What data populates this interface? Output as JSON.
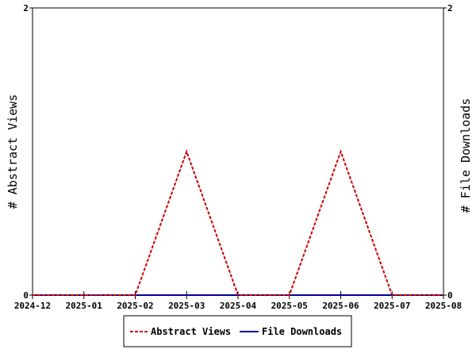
{
  "chart_data": {
    "type": "line",
    "title": "",
    "x_ticks": [
      "2024-12",
      "2025-01",
      "2025-02",
      "2025-03",
      "2025-04",
      "2025-05",
      "2025-06",
      "2025-07",
      "2025-08"
    ],
    "x": [
      "2024-12",
      "2025-01",
      "2025-02",
      "2025-03",
      "2025-04",
      "2025-05",
      "2025-06",
      "2025-07",
      "2025-08"
    ],
    "y_left_label": "# Abstract Views",
    "y_right_label": "# File Downloads",
    "y_left_ticks": [
      "0",
      "2"
    ],
    "y_right_ticks": [
      "0",
      "2"
    ],
    "ylim": [
      0,
      2
    ],
    "series": [
      {
        "name": "Abstract Views",
        "axis": "left",
        "color": "#cc0000",
        "style": "dashed",
        "values": [
          0,
          0,
          0,
          1,
          0,
          0,
          1,
          0,
          0
        ]
      },
      {
        "name": "File Downloads",
        "axis": "right",
        "color": "#000099",
        "style": "solid",
        "values": [
          0,
          0,
          0,
          0,
          0,
          0,
          0,
          0,
          0
        ]
      }
    ],
    "grid": false,
    "legend_position": "bottom-center"
  }
}
